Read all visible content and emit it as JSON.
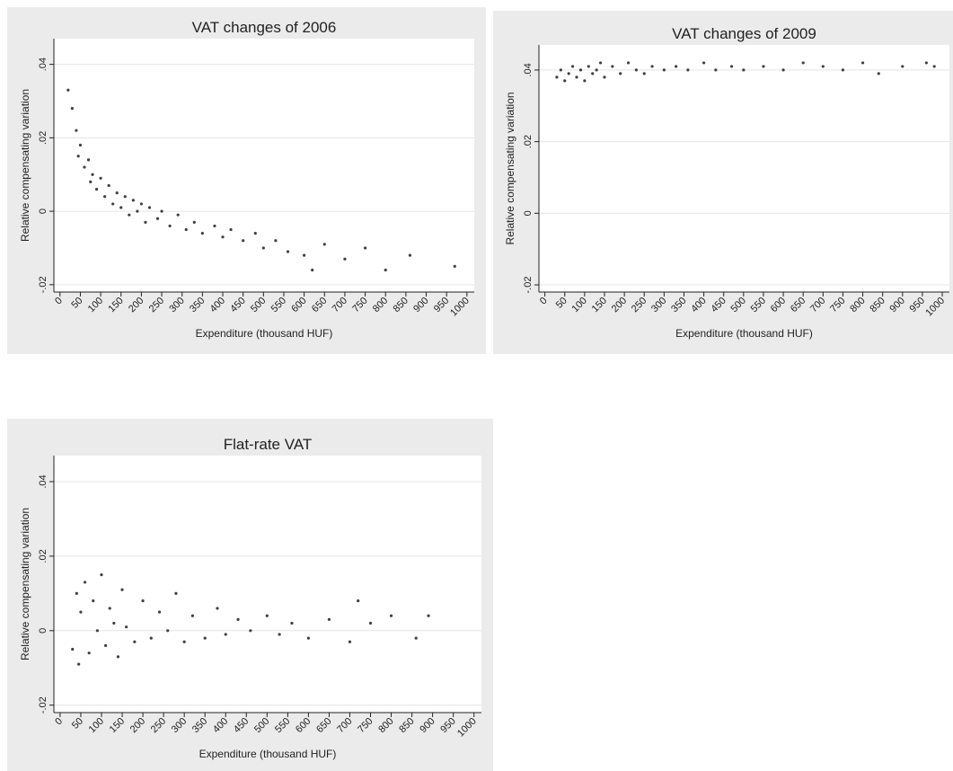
{
  "chart_data": [
    {
      "type": "scatter",
      "title": "VAT changes of 2006",
      "x_label": "Expenditure (thousand HUF)",
      "y_label": "Relative compensating variation",
      "color": "#404040",
      "grid": true,
      "xlim": [
        -15,
        1018
      ],
      "ylim": [
        -0.022,
        0.047
      ],
      "xticks": [
        0,
        50,
        100,
        150,
        200,
        250,
        300,
        350,
        400,
        450,
        500,
        550,
        600,
        650,
        700,
        750,
        800,
        850,
        900,
        950,
        1000
      ],
      "yticks": [
        {
          "value": -0.02,
          "label": "-.02"
        },
        0,
        {
          "value": 0.02,
          "label": ".02"
        },
        {
          "value": 0.04,
          "label": ".04"
        }
      ],
      "x": [
        20,
        30,
        40,
        45,
        50,
        60,
        70,
        75,
        80,
        90,
        100,
        110,
        120,
        130,
        140,
        150,
        160,
        170,
        180,
        190,
        200,
        210,
        220,
        240,
        250,
        270,
        290,
        310,
        330,
        350,
        380,
        400,
        420,
        450,
        480,
        500,
        530,
        560,
        600,
        620,
        650,
        700,
        750,
        800,
        860,
        970
      ],
      "values": [
        0.033,
        0.028,
        0.022,
        0.015,
        0.018,
        0.012,
        0.014,
        0.008,
        0.01,
        0.006,
        0.009,
        0.004,
        0.007,
        0.002,
        0.005,
        0.001,
        0.004,
        -0.001,
        0.003,
        0.0,
        0.002,
        -0.003,
        0.001,
        -0.002,
        0.0,
        -0.004,
        -0.001,
        -0.005,
        -0.003,
        -0.006,
        -0.004,
        -0.007,
        -0.005,
        -0.008,
        -0.006,
        -0.01,
        -0.008,
        -0.011,
        -0.012,
        -0.016,
        -0.009,
        -0.013,
        -0.01,
        -0.016,
        -0.012,
        -0.015
      ]
    },
    {
      "type": "scatter",
      "title": "VAT changes of 2009",
      "x_label": "Expenditure (thousand HUF)",
      "y_label": "Relative compensating variation",
      "color": "#404040",
      "grid": true,
      "xlim": [
        -15,
        1018
      ],
      "ylim": [
        -0.022,
        0.047
      ],
      "xticks": [
        0,
        50,
        100,
        150,
        200,
        250,
        300,
        350,
        400,
        450,
        500,
        550,
        600,
        650,
        700,
        750,
        800,
        850,
        900,
        950,
        1000
      ],
      "yticks": [
        {
          "value": -0.02,
          "label": "-.02"
        },
        0,
        {
          "value": 0.02,
          "label": ".02"
        },
        {
          "value": 0.04,
          "label": ".04"
        }
      ],
      "x": [
        30,
        40,
        50,
        60,
        70,
        80,
        90,
        100,
        110,
        120,
        130,
        140,
        150,
        170,
        190,
        210,
        230,
        250,
        270,
        300,
        330,
        360,
        400,
        430,
        470,
        500,
        550,
        600,
        650,
        700,
        750,
        800,
        840,
        900,
        960,
        980
      ],
      "values": [
        0.038,
        0.04,
        0.037,
        0.039,
        0.041,
        0.038,
        0.04,
        0.037,
        0.041,
        0.039,
        0.04,
        0.042,
        0.038,
        0.041,
        0.039,
        0.042,
        0.04,
        0.039,
        0.041,
        0.04,
        0.041,
        0.04,
        0.042,
        0.04,
        0.041,
        0.04,
        0.041,
        0.04,
        0.042,
        0.041,
        0.04,
        0.042,
        0.039,
        0.041,
        0.042,
        0.041
      ]
    },
    {
      "type": "scatter",
      "title": "Flat-rate VAT",
      "x_label": "Expenditure (thousand HUF)",
      "y_label": "Relative compensating variation",
      "color": "#404040",
      "grid": true,
      "xlim": [
        -15,
        1018
      ],
      "ylim": [
        -0.022,
        0.047
      ],
      "xticks": [
        0,
        50,
        100,
        150,
        200,
        250,
        300,
        350,
        400,
        450,
        500,
        550,
        600,
        650,
        700,
        750,
        800,
        850,
        900,
        950,
        1000
      ],
      "yticks": [
        {
          "value": -0.02,
          "label": "-.02"
        },
        0,
        {
          "value": 0.02,
          "label": ".02"
        },
        {
          "value": 0.04,
          "label": ".04"
        }
      ],
      "x": [
        30,
        40,
        45,
        50,
        60,
        70,
        80,
        90,
        100,
        110,
        120,
        130,
        140,
        150,
        160,
        180,
        200,
        220,
        240,
        260,
        280,
        300,
        320,
        350,
        380,
        400,
        430,
        460,
        500,
        530,
        560,
        600,
        650,
        700,
        720,
        750,
        800,
        860,
        890
      ],
      "values": [
        -0.005,
        0.01,
        -0.009,
        0.005,
        0.013,
        -0.006,
        0.008,
        0.0,
        0.015,
        -0.004,
        0.006,
        0.002,
        -0.007,
        0.011,
        0.001,
        -0.003,
        0.008,
        -0.002,
        0.005,
        0.0,
        0.01,
        -0.003,
        0.004,
        -0.002,
        0.006,
        -0.001,
        0.003,
        0.0,
        0.004,
        -0.001,
        0.002,
        -0.002,
        0.003,
        -0.003,
        0.008,
        0.002,
        0.004,
        -0.002,
        0.004
      ]
    }
  ]
}
